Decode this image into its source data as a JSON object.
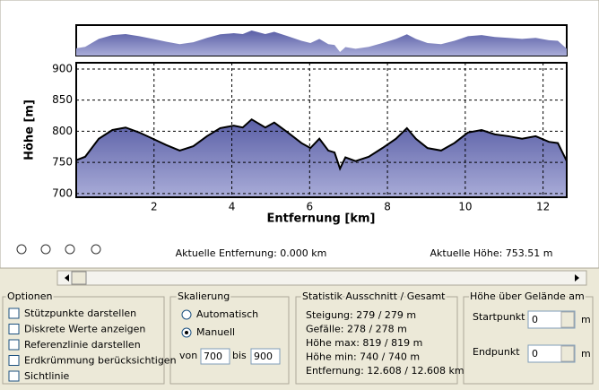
{
  "chart_data": {
    "type": "area",
    "ylabel": "Höhe [m]",
    "xlabel": "Entfernung [km]",
    "x": [
      0,
      0.23,
      0.58,
      0.93,
      1.27,
      1.62,
      1.97,
      2.31,
      2.66,
      3.01,
      3.36,
      3.7,
      4.05,
      4.28,
      4.51,
      4.86,
      5.09,
      5.44,
      5.79,
      6.02,
      6.25,
      6.48,
      6.64,
      6.78,
      6.92,
      7.18,
      7.52,
      7.87,
      8.22,
      8.5,
      8.73,
      9.03,
      9.38,
      9.72,
      10.07,
      10.42,
      10.76,
      11.11,
      11.46,
      11.81,
      12.15,
      12.38,
      12.608
    ],
    "series": [
      {
        "color": "#000000",
        "values": [
          753.51,
          759,
          788,
          802,
          806,
          798,
          788,
          778,
          769,
          776,
          792,
          805,
          809,
          806,
          819,
          806,
          814,
          798,
          781,
          773,
          788,
          769,
          766,
          740,
          758,
          752,
          759,
          773,
          788,
          805,
          788,
          773,
          769,
          781,
          798,
          802,
          795,
          792,
          788,
          792,
          783,
          781,
          752
        ]
      }
    ],
    "fill": "#6a6fb2",
    "xlim": [
      0,
      12.608
    ],
    "ylim": [
      694,
      910
    ],
    "xticks": [
      2,
      4,
      6,
      8,
      10,
      12
    ],
    "yticks": [
      700,
      750,
      800,
      850,
      900
    ],
    "grid": true
  },
  "status": {
    "distance": "Aktuelle Entfernung: 0.000 km",
    "height": "Aktuelle Höhe: 753.51 m"
  },
  "options": {
    "title": "Optionen",
    "items": [
      "Stützpunkte darstellen",
      "Diskrete Werte anzeigen",
      "Referenzlinie darstellen",
      "Erdkrümmung berücksichtigen",
      "Sichtlinie"
    ]
  },
  "scaling": {
    "title": "Skalierung",
    "auto": "Automatisch",
    "manual": "Manuell",
    "from": "von",
    "from_value": "700",
    "to": "bis",
    "to_value": "900"
  },
  "statistics": {
    "title": "Statistik  Ausschnitt / Gesamt",
    "lines": [
      "Steigung: 279 / 279 m",
      "Gefälle: 278 / 278 m",
      "Höhe max: 819 / 819 m",
      "Höhe min: 740 / 740 m",
      "Entfernung: 12.608 / 12.608 km"
    ]
  },
  "ground": {
    "title": "Höhe über Gelände am",
    "start": "Startpunkt",
    "start_value": "0",
    "end": "Endpunkt",
    "end_value": "0",
    "unit": "m"
  }
}
